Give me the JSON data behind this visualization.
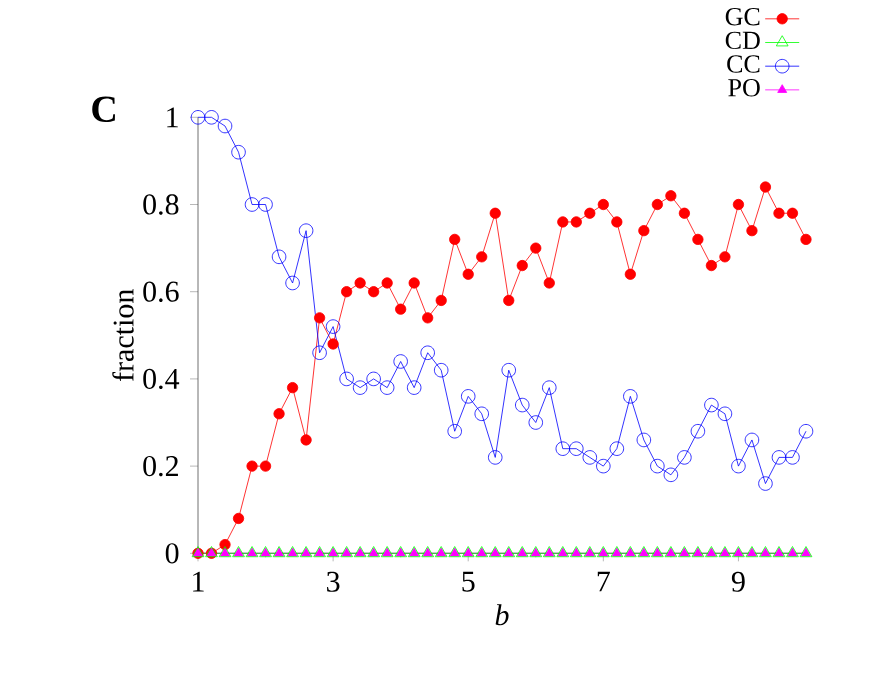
{
  "chart_data": {
    "type": "line",
    "title": "C",
    "xlabel": "b",
    "ylabel": "fraction",
    "x": [
      1,
      1.2,
      1.4,
      1.6,
      1.8,
      2,
      2.2,
      2.4,
      2.6,
      2.8,
      3,
      3.2,
      3.4,
      3.6,
      3.8,
      4,
      4.2,
      4.4,
      4.6,
      4.8,
      5,
      5.2,
      5.4,
      5.6,
      5.8,
      6,
      6.2,
      6.4,
      6.6,
      6.8,
      7,
      7.2,
      7.4,
      7.6,
      7.8,
      8,
      8.2,
      8.4,
      8.6,
      8.8,
      9,
      9.2,
      9.4,
      9.6,
      9.8,
      10
    ],
    "series": [
      {
        "name": "GC",
        "color": "#ff0000",
        "marker": "circle",
        "values": [
          0,
          0,
          0.02,
          0.08,
          0.2,
          0.2,
          0.32,
          0.38,
          0.26,
          0.54,
          0.48,
          0.6,
          0.62,
          0.6,
          0.62,
          0.56,
          0.62,
          0.54,
          0.58,
          0.72,
          0.64,
          0.68,
          0.78,
          0.58,
          0.66,
          0.7,
          0.62,
          0.76,
          0.76,
          0.78,
          0.8,
          0.76,
          0.64,
          0.74,
          0.8,
          0.82,
          0.78,
          0.72,
          0.66,
          0.68,
          0.8,
          0.74,
          0.84,
          0.78,
          0.78,
          0.72
        ]
      },
      {
        "name": "CD",
        "color": "#00ff00",
        "marker": "triangle",
        "values": [
          0,
          0,
          0,
          0,
          0,
          0,
          0,
          0,
          0,
          0,
          0,
          0,
          0,
          0,
          0,
          0,
          0,
          0,
          0,
          0,
          0,
          0,
          0,
          0,
          0,
          0,
          0,
          0,
          0,
          0,
          0,
          0,
          0,
          0,
          0,
          0,
          0,
          0,
          0,
          0,
          0,
          0,
          0,
          0,
          0,
          0
        ]
      },
      {
        "name": "CC",
        "color": "#0000ff",
        "marker": "circle",
        "values": [
          1,
          1,
          0.98,
          0.92,
          0.8,
          0.8,
          0.68,
          0.62,
          0.74,
          0.46,
          0.52,
          0.4,
          0.38,
          0.4,
          0.38,
          0.44,
          0.38,
          0.46,
          0.42,
          0.28,
          0.36,
          0.32,
          0.22,
          0.42,
          0.34,
          0.3,
          0.38,
          0.24,
          0.24,
          0.22,
          0.2,
          0.24,
          0.36,
          0.26,
          0.2,
          0.18,
          0.22,
          0.28,
          0.34,
          0.32,
          0.2,
          0.26,
          0.16,
          0.22,
          0.22,
          0.28
        ]
      },
      {
        "name": "PO",
        "color": "#ff00ff",
        "marker": "triangle",
        "values": [
          0,
          0,
          0,
          0,
          0,
          0,
          0,
          0,
          0,
          0,
          0,
          0,
          0,
          0,
          0,
          0,
          0,
          0,
          0,
          0,
          0,
          0,
          0,
          0,
          0,
          0,
          0,
          0,
          0,
          0,
          0,
          0,
          0,
          0,
          0,
          0,
          0,
          0,
          0,
          0,
          0,
          0,
          0,
          0,
          0,
          0
        ]
      }
    ],
    "xlim": [
      1,
      10
    ],
    "ylim": [
      0,
      1
    ],
    "xticks": [
      1,
      3,
      5,
      7,
      9
    ],
    "yticks": [
      0,
      0.2,
      0.4,
      0.6,
      0.8,
      1
    ],
    "grid": false,
    "legend": "top right",
    "line_style": "solid"
  }
}
